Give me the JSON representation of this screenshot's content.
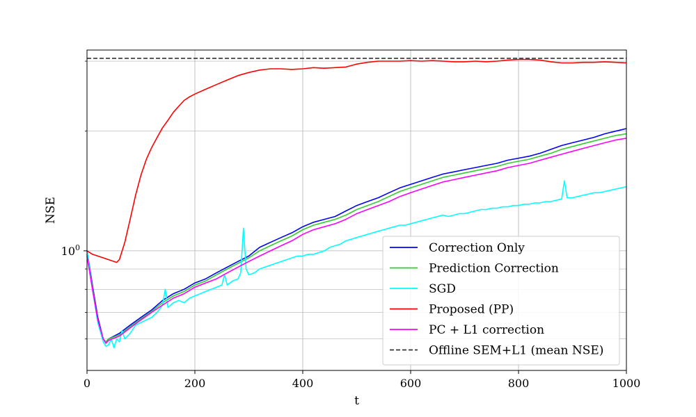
{
  "chart_data": {
    "type": "line",
    "title": "",
    "xlabel": "t",
    "ylabel": "NSE",
    "xlim": [
      0,
      1000
    ],
    "ylim": [
      0.5,
      3.2
    ],
    "yscale": "log",
    "grid": true,
    "legend_position": "lower-right",
    "x_ticks": [
      0,
      200,
      400,
      600,
      800,
      1000
    ],
    "x_tick_labels": [
      "0",
      "200",
      "400",
      "600",
      "800",
      "1000"
    ],
    "y_tick_labels": [
      {
        "value": 1,
        "label": "10^0",
        "base": "10",
        "exp": "0"
      }
    ],
    "y_minor_ticks": [
      0.6,
      0.7,
      0.8,
      0.9,
      2,
      3
    ],
    "series": [
      {
        "name": "Correction Only",
        "color": "#0000ff",
        "x": [
          0,
          10,
          20,
          30,
          35,
          40,
          60,
          80,
          100,
          120,
          140,
          160,
          180,
          200,
          220,
          240,
          260,
          280,
          300,
          320,
          340,
          360,
          380,
          400,
          420,
          440,
          460,
          480,
          500,
          520,
          540,
          560,
          580,
          600,
          620,
          640,
          660,
          680,
          700,
          720,
          740,
          760,
          780,
          800,
          820,
          840,
          860,
          880,
          900,
          920,
          940,
          960,
          980,
          1000
        ],
        "y": [
          1.0,
          0.82,
          0.68,
          0.6,
          0.59,
          0.6,
          0.62,
          0.65,
          0.68,
          0.71,
          0.75,
          0.78,
          0.8,
          0.83,
          0.85,
          0.88,
          0.91,
          0.94,
          0.97,
          1.02,
          1.05,
          1.08,
          1.11,
          1.15,
          1.18,
          1.2,
          1.22,
          1.26,
          1.3,
          1.33,
          1.36,
          1.4,
          1.44,
          1.47,
          1.5,
          1.53,
          1.56,
          1.58,
          1.6,
          1.62,
          1.64,
          1.66,
          1.69,
          1.71,
          1.73,
          1.76,
          1.8,
          1.84,
          1.87,
          1.9,
          1.93,
          1.97,
          2.0,
          2.03
        ]
      },
      {
        "name": "Prediction Correction",
        "color": "#33cc33",
        "x": [
          0,
          10,
          20,
          30,
          35,
          40,
          60,
          80,
          100,
          120,
          140,
          160,
          180,
          200,
          220,
          240,
          260,
          280,
          300,
          320,
          340,
          360,
          380,
          400,
          420,
          440,
          460,
          480,
          500,
          520,
          540,
          560,
          580,
          600,
          620,
          640,
          660,
          680,
          700,
          720,
          740,
          760,
          780,
          800,
          820,
          840,
          860,
          880,
          900,
          920,
          940,
          960,
          980,
          1000
        ],
        "y": [
          0.98,
          0.81,
          0.67,
          0.6,
          0.59,
          0.6,
          0.615,
          0.645,
          0.675,
          0.705,
          0.74,
          0.77,
          0.79,
          0.82,
          0.84,
          0.87,
          0.9,
          0.93,
          0.96,
          1.0,
          1.03,
          1.06,
          1.09,
          1.13,
          1.16,
          1.18,
          1.2,
          1.23,
          1.27,
          1.3,
          1.33,
          1.37,
          1.41,
          1.44,
          1.47,
          1.5,
          1.53,
          1.55,
          1.57,
          1.59,
          1.61,
          1.63,
          1.66,
          1.68,
          1.7,
          1.73,
          1.76,
          1.8,
          1.83,
          1.86,
          1.89,
          1.92,
          1.95,
          1.97
        ]
      },
      {
        "name": "SGD",
        "color": "#00ffff",
        "x": [
          0,
          10,
          20,
          30,
          35,
          40,
          45,
          50,
          55,
          60,
          65,
          70,
          80,
          90,
          100,
          110,
          120,
          130,
          140,
          145,
          150,
          160,
          170,
          180,
          190,
          200,
          210,
          220,
          230,
          240,
          250,
          255,
          260,
          270,
          280,
          285,
          290,
          295,
          300,
          310,
          320,
          330,
          340,
          350,
          360,
          370,
          380,
          390,
          400,
          410,
          420,
          430,
          440,
          450,
          460,
          470,
          480,
          490,
          500,
          510,
          520,
          530,
          540,
          550,
          560,
          570,
          580,
          590,
          600,
          610,
          620,
          630,
          640,
          650,
          660,
          670,
          680,
          690,
          700,
          710,
          720,
          730,
          740,
          750,
          760,
          770,
          780,
          790,
          800,
          810,
          820,
          830,
          840,
          850,
          860,
          870,
          880,
          885,
          890,
          900,
          910,
          920,
          930,
          940,
          950,
          960,
          970,
          980,
          990,
          1000
        ],
        "y": [
          1.0,
          0.8,
          0.66,
          0.59,
          0.575,
          0.58,
          0.6,
          0.57,
          0.6,
          0.59,
          0.63,
          0.6,
          0.62,
          0.65,
          0.66,
          0.67,
          0.68,
          0.7,
          0.73,
          0.8,
          0.72,
          0.74,
          0.75,
          0.74,
          0.76,
          0.77,
          0.78,
          0.79,
          0.8,
          0.81,
          0.82,
          0.87,
          0.82,
          0.84,
          0.85,
          0.88,
          1.14,
          0.9,
          0.87,
          0.88,
          0.9,
          0.91,
          0.92,
          0.93,
          0.94,
          0.95,
          0.96,
          0.97,
          0.97,
          0.98,
          0.98,
          0.99,
          1.0,
          1.02,
          1.03,
          1.04,
          1.06,
          1.07,
          1.08,
          1.09,
          1.1,
          1.11,
          1.12,
          1.13,
          1.14,
          1.15,
          1.16,
          1.16,
          1.17,
          1.18,
          1.19,
          1.2,
          1.21,
          1.22,
          1.23,
          1.22,
          1.23,
          1.24,
          1.24,
          1.25,
          1.26,
          1.27,
          1.27,
          1.28,
          1.28,
          1.29,
          1.29,
          1.3,
          1.3,
          1.31,
          1.31,
          1.32,
          1.32,
          1.33,
          1.33,
          1.34,
          1.35,
          1.5,
          1.36,
          1.36,
          1.37,
          1.38,
          1.39,
          1.4,
          1.4,
          1.41,
          1.42,
          1.43,
          1.44,
          1.45
        ]
      },
      {
        "name": "Proposed (PP)",
        "color": "#ff0000",
        "x": [
          0,
          10,
          20,
          30,
          40,
          50,
          55,
          60,
          70,
          80,
          90,
          100,
          110,
          120,
          130,
          140,
          150,
          160,
          170,
          180,
          190,
          200,
          220,
          240,
          260,
          280,
          300,
          320,
          340,
          360,
          380,
          400,
          420,
          440,
          460,
          480,
          500,
          520,
          540,
          560,
          580,
          600,
          620,
          640,
          660,
          680,
          700,
          720,
          740,
          760,
          780,
          800,
          820,
          840,
          860,
          880,
          900,
          920,
          940,
          960,
          980,
          1000
        ],
        "y": [
          1.0,
          0.98,
          0.97,
          0.96,
          0.95,
          0.94,
          0.935,
          0.95,
          1.05,
          1.2,
          1.38,
          1.55,
          1.7,
          1.82,
          1.93,
          2.04,
          2.13,
          2.23,
          2.31,
          2.39,
          2.44,
          2.48,
          2.55,
          2.62,
          2.69,
          2.76,
          2.81,
          2.85,
          2.87,
          2.87,
          2.86,
          2.87,
          2.89,
          2.88,
          2.89,
          2.9,
          2.95,
          2.98,
          3.0,
          3.0,
          3.0,
          3.01,
          3.0,
          3.01,
          3.0,
          2.99,
          2.99,
          3.0,
          2.99,
          3.0,
          3.02,
          3.03,
          3.03,
          3.02,
          2.99,
          2.97,
          2.97,
          2.98,
          2.98,
          2.99,
          2.98,
          2.97
        ]
      },
      {
        "name": "PC + L1 correction",
        "color": "#ff00ff",
        "x": [
          0,
          10,
          20,
          30,
          35,
          40,
          60,
          80,
          100,
          120,
          140,
          160,
          180,
          200,
          220,
          240,
          260,
          280,
          300,
          320,
          340,
          360,
          380,
          400,
          420,
          440,
          460,
          480,
          500,
          520,
          540,
          560,
          580,
          600,
          620,
          640,
          660,
          680,
          700,
          720,
          740,
          760,
          780,
          800,
          820,
          840,
          860,
          880,
          900,
          920,
          940,
          960,
          980,
          1000
        ],
        "y": [
          0.97,
          0.8,
          0.67,
          0.6,
          0.585,
          0.595,
          0.61,
          0.64,
          0.67,
          0.7,
          0.73,
          0.76,
          0.78,
          0.81,
          0.83,
          0.85,
          0.88,
          0.91,
          0.94,
          0.97,
          1.0,
          1.03,
          1.06,
          1.1,
          1.13,
          1.15,
          1.17,
          1.2,
          1.24,
          1.27,
          1.3,
          1.33,
          1.37,
          1.4,
          1.43,
          1.46,
          1.49,
          1.51,
          1.53,
          1.55,
          1.57,
          1.59,
          1.62,
          1.64,
          1.66,
          1.69,
          1.72,
          1.75,
          1.78,
          1.81,
          1.84,
          1.87,
          1.9,
          1.92
        ]
      },
      {
        "name": "Offline SEM+L1 (mean NSE)",
        "color": "#333333",
        "dashed": true,
        "x": [
          0,
          1000
        ],
        "y": [
          3.05,
          3.05
        ]
      }
    ]
  }
}
